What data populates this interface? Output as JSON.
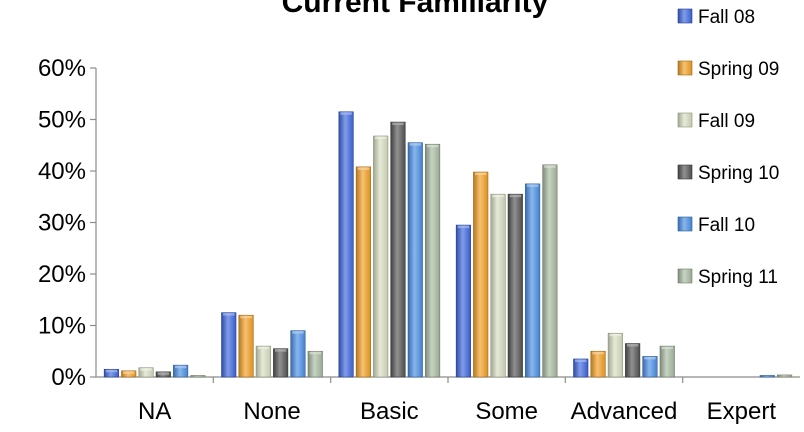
{
  "chart_data": {
    "type": "bar",
    "title": "Current Familiarity",
    "categories": [
      "NA",
      "None",
      "Basic",
      "Some",
      "Advanced",
      "Expert"
    ],
    "ylim": [
      0,
      60
    ],
    "yticks": [
      "0%",
      "10%",
      "20%",
      "30%",
      "40%",
      "50%",
      "60%"
    ],
    "grid": false,
    "legend_position": "top-right",
    "series": [
      {
        "name": "Fall 08",
        "color": "#3e67e0",
        "values": [
          1.5,
          12.5,
          51.5,
          29.5,
          3.5,
          0.0
        ]
      },
      {
        "name": "Spring 09",
        "color": "#f4a024",
        "values": [
          1.2,
          12.0,
          40.8,
          39.8,
          5.0,
          0.0
        ]
      },
      {
        "name": "Fall 09",
        "color": "#d8dfc2",
        "values": [
          1.8,
          6.0,
          46.8,
          35.5,
          8.5,
          0.0
        ]
      },
      {
        "name": "Spring 10",
        "color": "#555555",
        "values": [
          1.0,
          5.5,
          49.5,
          35.5,
          6.5,
          0.0
        ]
      },
      {
        "name": "Fall 10",
        "color": "#4a8fe6",
        "values": [
          2.3,
          9.0,
          45.5,
          37.5,
          4.0,
          0.3
        ]
      },
      {
        "name": "Spring 11",
        "color": "#a9bba2",
        "values": [
          0.3,
          5.0,
          45.2,
          41.2,
          6.0,
          0.4
        ]
      }
    ]
  }
}
